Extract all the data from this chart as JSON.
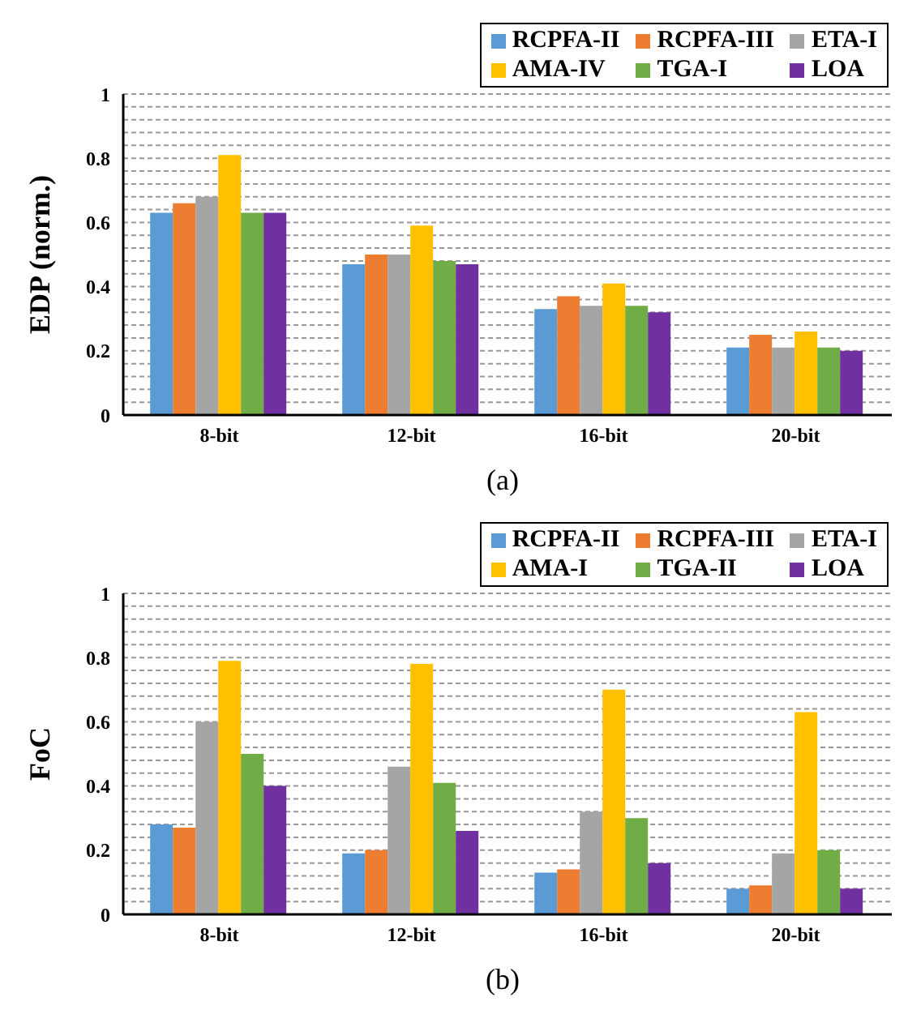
{
  "chart_data": [
    {
      "type": "bar",
      "ylabel": "EDP (norm.)",
      "categories": [
        "8-bit",
        "12-bit",
        "16-bit",
        "20-bit"
      ],
      "series": [
        {
          "name": "RCPFA-II",
          "color": "#5b9bd5",
          "values": [
            0.63,
            0.47,
            0.33,
            0.21
          ]
        },
        {
          "name": "RCPFA-III",
          "color": "#ed7d31",
          "values": [
            0.66,
            0.5,
            0.37,
            0.25
          ]
        },
        {
          "name": "ETA-I",
          "color": "#a5a5a5",
          "values": [
            0.68,
            0.5,
            0.34,
            0.21
          ]
        },
        {
          "name": "AMA-IV",
          "color": "#ffc000",
          "values": [
            0.81,
            0.59,
            0.41,
            0.26
          ]
        },
        {
          "name": "TGA-I",
          "color": "#70ad47",
          "values": [
            0.63,
            0.48,
            0.34,
            0.21
          ]
        },
        {
          "name": "LOA",
          "color": "#7030a0",
          "values": [
            0.63,
            0.47,
            0.32,
            0.2
          ]
        }
      ],
      "ylim": [
        0,
        1
      ],
      "yticks": [
        0,
        {
          "value": 0.04,
          "label": null
        },
        {
          "value": 0.08,
          "label": null
        },
        {
          "value": 0.12,
          "label": null
        },
        {
          "value": 0.16,
          "label": null
        },
        0.2,
        {
          "value": 0.24,
          "label": null
        },
        {
          "value": 0.28,
          "label": null
        },
        {
          "value": 0.32,
          "label": null
        },
        {
          "value": 0.36,
          "label": null
        },
        0.4,
        {
          "value": 0.44,
          "label": null
        },
        {
          "value": 0.48,
          "label": null
        },
        {
          "value": 0.52,
          "label": null
        },
        {
          "value": 0.56,
          "label": null
        },
        0.6,
        {
          "value": 0.64,
          "label": null
        },
        {
          "value": 0.68,
          "label": null
        },
        {
          "value": 0.72,
          "label": null
        },
        {
          "value": 0.76,
          "label": null
        },
        0.8,
        {
          "value": 0.84,
          "label": null
        },
        {
          "value": 0.88,
          "label": null
        },
        {
          "value": 0.92,
          "label": null
        },
        {
          "value": 0.96,
          "label": null
        },
        1
      ],
      "grid": "y",
      "legend": "top right",
      "annotations": [
        "(a)"
      ]
    },
    {
      "type": "bar",
      "ylabel": "FoC",
      "categories": [
        "8-bit",
        "12-bit",
        "16-bit",
        "20-bit"
      ],
      "series": [
        {
          "name": "RCPFA-II",
          "color": "#5b9bd5",
          "values": [
            0.28,
            0.19,
            0.13,
            0.08
          ]
        },
        {
          "name": "RCPFA-III",
          "color": "#ed7d31",
          "values": [
            0.27,
            0.2,
            0.14,
            0.09
          ]
        },
        {
          "name": "ETA-I",
          "color": "#a5a5a5",
          "values": [
            0.6,
            0.46,
            0.32,
            0.19
          ]
        },
        {
          "name": "AMA-I",
          "color": "#ffc000",
          "values": [
            0.79,
            0.78,
            0.7,
            0.63
          ]
        },
        {
          "name": "TGA-II",
          "color": "#70ad47",
          "values": [
            0.5,
            0.41,
            0.3,
            0.2
          ]
        },
        {
          "name": "LOA",
          "color": "#7030a0",
          "values": [
            0.4,
            0.26,
            0.16,
            0.08
          ]
        }
      ],
      "ylim": [
        0,
        1
      ],
      "yticks": [
        0,
        {
          "value": 0.04,
          "label": null
        },
        {
          "value": 0.08,
          "label": null
        },
        {
          "value": 0.12,
          "label": null
        },
        {
          "value": 0.16,
          "label": null
        },
        0.2,
        {
          "value": 0.24,
          "label": null
        },
        {
          "value": 0.28,
          "label": null
        },
        {
          "value": 0.32,
          "label": null
        },
        {
          "value": 0.36,
          "label": null
        },
        0.4,
        {
          "value": 0.44,
          "label": null
        },
        {
          "value": 0.48,
          "label": null
        },
        {
          "value": 0.52,
          "label": null
        },
        {
          "value": 0.56,
          "label": null
        },
        0.6,
        {
          "value": 0.64,
          "label": null
        },
        {
          "value": 0.68,
          "label": null
        },
        {
          "value": 0.72,
          "label": null
        },
        {
          "value": 0.76,
          "label": null
        },
        0.8,
        {
          "value": 0.84,
          "label": null
        },
        {
          "value": 0.88,
          "label": null
        },
        {
          "value": 0.92,
          "label": null
        },
        {
          "value": 0.96,
          "label": null
        },
        1
      ],
      "grid": "y",
      "legend": "top right",
      "annotations": [
        "(b)"
      ]
    }
  ]
}
